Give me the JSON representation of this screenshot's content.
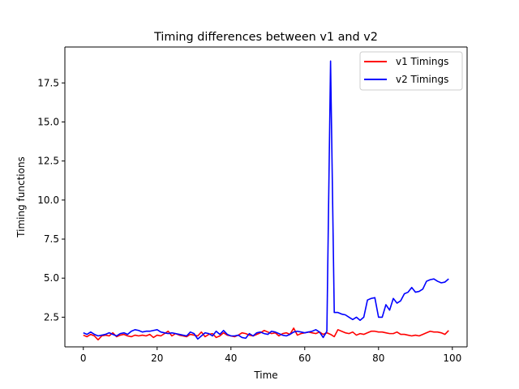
{
  "chart_data": {
    "type": "line",
    "title": "Timing differences between v1 and v2",
    "xlabel": "Time",
    "ylabel": "Timing functions",
    "xlim": [
      -5,
      104
    ],
    "ylim": [
      0.6,
      19.8
    ],
    "xticks": [
      0,
      20,
      40,
      60,
      80,
      100
    ],
    "xtick_labels": [
      "0",
      "20",
      "40",
      "60",
      "80",
      "100"
    ],
    "yticks": [
      2.5,
      5.0,
      7.5,
      10.0,
      12.5,
      15.0,
      17.5
    ],
    "ytick_labels": [
      "2.5",
      "5.0",
      "7.5",
      "10.0",
      "12.5",
      "15.0",
      "17.5"
    ],
    "grid": false,
    "legend": "top-right",
    "x": [
      0,
      1,
      2,
      3,
      4,
      5,
      6,
      7,
      8,
      9,
      10,
      11,
      12,
      13,
      14,
      15,
      16,
      17,
      18,
      19,
      20,
      21,
      22,
      23,
      24,
      25,
      26,
      27,
      28,
      29,
      30,
      31,
      32,
      33,
      34,
      35,
      36,
      37,
      38,
      39,
      40,
      41,
      42,
      43,
      44,
      45,
      46,
      47,
      48,
      49,
      50,
      51,
      52,
      53,
      54,
      55,
      56,
      57,
      58,
      59,
      60,
      61,
      62,
      63,
      64,
      65,
      66,
      67,
      68,
      69,
      70,
      71,
      72,
      73,
      74,
      75,
      76,
      77,
      78,
      79,
      80,
      81,
      82,
      83,
      84,
      85,
      86,
      87,
      88,
      89,
      90,
      91,
      92,
      93,
      94,
      95,
      96,
      97,
      98,
      99
    ],
    "series": [
      {
        "name": "v1 Timings",
        "color": "#ff0000",
        "values": [
          1.35,
          1.25,
          1.4,
          1.3,
          1.05,
          1.3,
          1.35,
          1.3,
          1.5,
          1.25,
          1.35,
          1.4,
          1.3,
          1.25,
          1.35,
          1.3,
          1.35,
          1.3,
          1.4,
          1.2,
          1.35,
          1.3,
          1.45,
          1.6,
          1.3,
          1.45,
          1.35,
          1.3,
          1.25,
          1.4,
          1.35,
          1.3,
          1.55,
          1.25,
          1.4,
          1.45,
          1.2,
          1.3,
          1.5,
          1.35,
          1.3,
          1.25,
          1.35,
          1.5,
          1.45,
          1.35,
          1.3,
          1.4,
          1.5,
          1.65,
          1.55,
          1.45,
          1.5,
          1.3,
          1.45,
          1.5,
          1.4,
          1.8,
          1.35,
          1.45,
          1.5,
          1.55,
          1.5,
          1.45,
          1.55,
          1.4,
          1.5,
          1.4,
          1.25,
          1.7,
          1.6,
          1.5,
          1.45,
          1.55,
          1.35,
          1.45,
          1.4,
          1.5,
          1.6,
          1.6,
          1.55,
          1.55,
          1.5,
          1.45,
          1.45,
          1.55,
          1.4,
          1.4,
          1.35,
          1.3,
          1.35,
          1.3,
          1.4,
          1.5,
          1.6,
          1.55,
          1.55,
          1.5,
          1.4,
          1.65
        ]
      },
      {
        "name": "v2 Timings",
        "color": "#0000ff",
        "values": [
          1.5,
          1.4,
          1.55,
          1.4,
          1.3,
          1.35,
          1.4,
          1.5,
          1.4,
          1.3,
          1.45,
          1.5,
          1.4,
          1.6,
          1.7,
          1.65,
          1.55,
          1.6,
          1.6,
          1.65,
          1.7,
          1.55,
          1.5,
          1.45,
          1.5,
          1.45,
          1.4,
          1.35,
          1.3,
          1.55,
          1.45,
          1.1,
          1.3,
          1.5,
          1.45,
          1.3,
          1.6,
          1.4,
          1.65,
          1.4,
          1.3,
          1.3,
          1.35,
          1.2,
          1.15,
          1.45,
          1.3,
          1.5,
          1.55,
          1.45,
          1.4,
          1.6,
          1.55,
          1.45,
          1.35,
          1.3,
          1.4,
          1.55,
          1.6,
          1.55,
          1.5,
          1.55,
          1.6,
          1.7,
          1.55,
          1.2,
          1.6,
          18.9,
          2.8,
          2.8,
          2.7,
          2.65,
          2.5,
          2.35,
          2.5,
          2.3,
          2.5,
          3.6,
          3.7,
          3.75,
          2.5,
          2.5,
          3.3,
          2.95,
          3.7,
          3.4,
          3.55,
          4.0,
          4.1,
          4.4,
          4.1,
          4.15,
          4.3,
          4.8,
          4.9,
          4.95,
          4.8,
          4.7,
          4.75,
          4.95
        ]
      }
    ]
  }
}
